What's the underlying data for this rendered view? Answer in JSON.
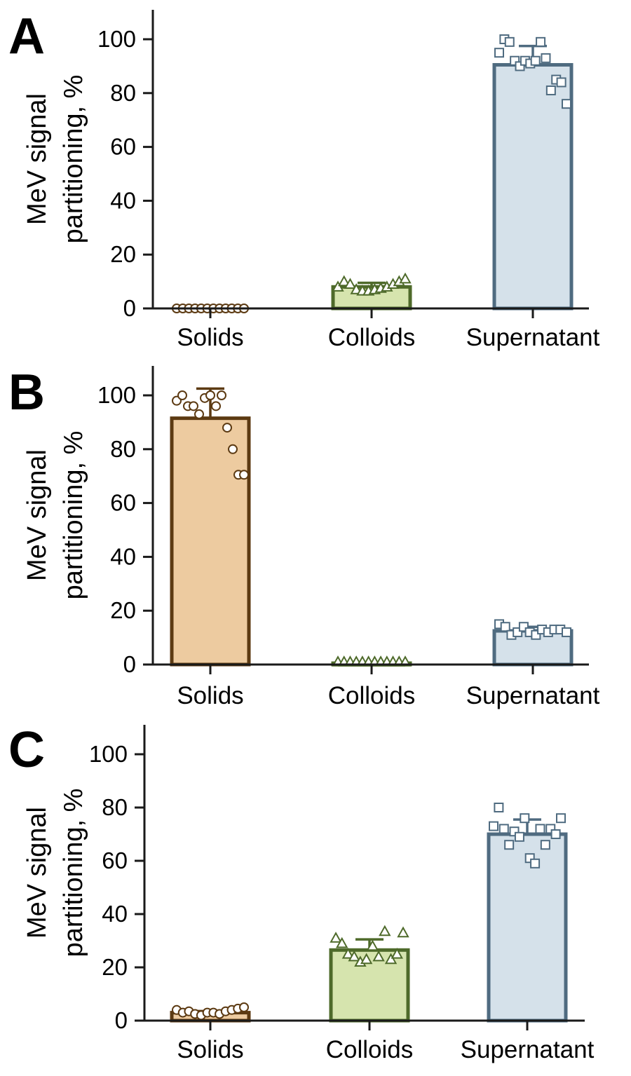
{
  "colors": {
    "solids_fill": "#edcba0",
    "solids_stroke": "#5c3a12",
    "colloids_fill": "#d6e4ae",
    "colloids_stroke": "#4e6a2a",
    "supernatant_fill": "#d5e1ea",
    "supernatant_stroke": "#4f6b80"
  },
  "chart_data": [
    {
      "panel": "A",
      "type": "bar",
      "ylabel": "MeV signal partitioning, %",
      "categories": [
        "Solids",
        "Colloids",
        "Supernatant"
      ],
      "ylim": [
        0,
        110
      ],
      "yticks": [
        0,
        20,
        40,
        60,
        80,
        100
      ],
      "values": [
        0,
        8,
        90.5
      ],
      "error": [
        0,
        1.5,
        7
      ],
      "points": [
        [
          0,
          0,
          0,
          0,
          0,
          0,
          0,
          0,
          0,
          0,
          0,
          0
        ],
        [
          8,
          10,
          9,
          7,
          6.5,
          6.5,
          7,
          7.5,
          8,
          9,
          10,
          11
        ],
        [
          95,
          100,
          99,
          92,
          90,
          92,
          91,
          92,
          99,
          93,
          81,
          85,
          84,
          76
        ]
      ],
      "markers": [
        "circle",
        "triangle",
        "square"
      ]
    },
    {
      "panel": "B",
      "type": "bar",
      "ylabel": "MeV signal partitioning, %",
      "categories": [
        "Solids",
        "Colloids",
        "Supernatant"
      ],
      "ylim": [
        0,
        110
      ],
      "yticks": [
        0,
        20,
        40,
        60,
        80,
        100
      ],
      "values": [
        91.5,
        0.5,
        12.5
      ],
      "error": [
        11,
        0.3,
        1.5
      ],
      "points": [
        [
          98,
          100,
          96,
          96,
          93,
          99,
          100,
          96,
          100,
          88,
          80,
          70.5,
          70.5
        ],
        [
          1,
          1,
          1,
          1,
          1,
          1,
          1,
          1,
          1,
          1,
          1,
          1
        ],
        [
          15,
          14,
          11,
          12,
          14,
          12,
          11,
          13,
          12,
          13,
          13,
          12
        ]
      ],
      "markers": [
        "circle",
        "triangle",
        "square"
      ]
    },
    {
      "panel": "C",
      "type": "bar",
      "ylabel": "MeV signal partitioning, %",
      "categories": [
        "Solids",
        "Colloids",
        "Supernatant"
      ],
      "ylim": [
        0,
        110
      ],
      "yticks": [
        0,
        20,
        40,
        60,
        80,
        100
      ],
      "values": [
        3,
        26.5,
        70
      ],
      "error": [
        0.6,
        4,
        5.5
      ],
      "points": [
        [
          4,
          3,
          3.5,
          2.5,
          2,
          3,
          3,
          2.5,
          3.5,
          4,
          4.5,
          5
        ],
        [
          31,
          29,
          25,
          24,
          22,
          23,
          28,
          24,
          33.5,
          23,
          25,
          33
        ],
        [
          73,
          80,
          72,
          66,
          71,
          69,
          76,
          61,
          59,
          72,
          66,
          72,
          70,
          76
        ]
      ],
      "markers": [
        "circle",
        "triangle",
        "square"
      ]
    }
  ]
}
